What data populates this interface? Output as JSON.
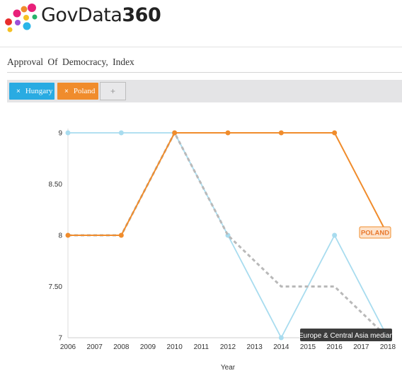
{
  "header": {
    "logo_text_a": "GovData",
    "logo_text_b": "360",
    "logo_colors": [
      "#e8207a",
      "#f08c2c",
      "#2bb5e8",
      "#f5c023",
      "#e82d2d",
      "#9b4fd8",
      "#26b36a"
    ]
  },
  "subtitle": "Approval  Of Democracy,  Index",
  "chips": [
    {
      "label": "Hungary",
      "color": "#29abe2",
      "remove_icon": "×"
    },
    {
      "label": "Poland",
      "color": "#f08c2c",
      "remove_icon": "×"
    }
  ],
  "add_button": "+",
  "chart_data": {
    "type": "line",
    "x": [
      2006,
      2007,
      2008,
      2009,
      2010,
      2011,
      2012,
      2013,
      2014,
      2015,
      2016,
      2017,
      2018
    ],
    "xlabel": "Year",
    "ylabel": "",
    "ylim": [
      7,
      9
    ],
    "yticks": [
      "7",
      "7.50",
      "8",
      "8.50",
      "9"
    ],
    "grid": false,
    "series": [
      {
        "name": "Hungary",
        "color": "#a8dcef",
        "style": "solid",
        "points": [
          [
            2006,
            9
          ],
          [
            2008,
            9
          ],
          [
            2010,
            9
          ],
          [
            2012,
            8
          ],
          [
            2014,
            7
          ],
          [
            2016,
            8
          ],
          [
            2018,
            7
          ]
        ]
      },
      {
        "name": "Europe & Central Asia median",
        "color": "#b9b9b9",
        "style": "dashed",
        "points": [
          [
            2006,
            8
          ],
          [
            2008,
            8
          ],
          [
            2010,
            9
          ],
          [
            2012,
            8
          ],
          [
            2014,
            7.5
          ],
          [
            2016,
            7.5
          ],
          [
            2018,
            7
          ]
        ]
      },
      {
        "name": "Poland",
        "color": "#f08c2c",
        "style": "solid",
        "points": [
          [
            2006,
            8
          ],
          [
            2008,
            8
          ],
          [
            2010,
            9
          ],
          [
            2012,
            9
          ],
          [
            2014,
            9
          ],
          [
            2016,
            9
          ],
          [
            2018,
            8
          ]
        ]
      }
    ],
    "line_label": {
      "text": "POLAND",
      "color": "#f08c2c"
    },
    "tooltip": {
      "text": "Europe & Central Asia median"
    }
  }
}
